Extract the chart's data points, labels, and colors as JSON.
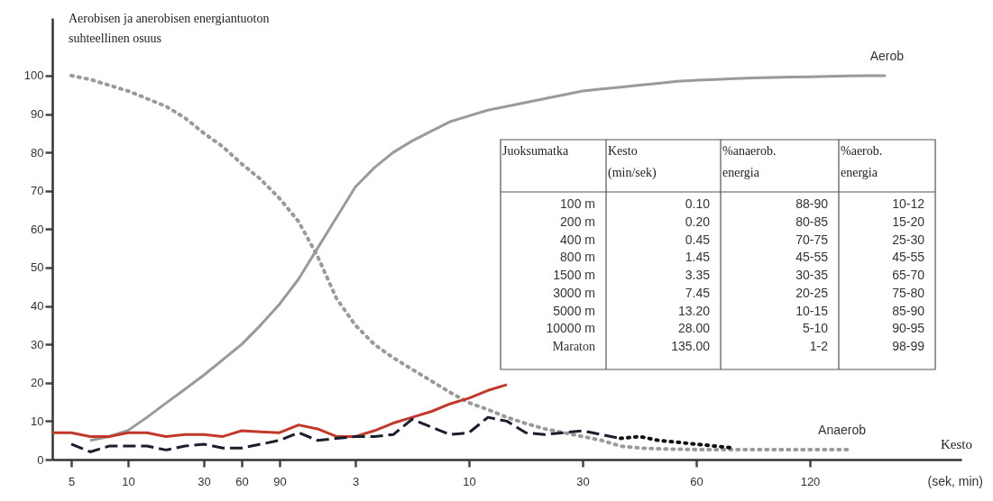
{
  "chart_data": {
    "type": "line",
    "ylabel": "Aerobisen ja anerobisen energiantuoton\nsuhteellinen osuus",
    "xlabel": "Kesto\n(sek, min)",
    "categories": [
      null,
      "5",
      null,
      null,
      "10",
      null,
      null,
      null,
      "30",
      null,
      "60",
      null,
      "90",
      null,
      null,
      null,
      "3",
      null,
      null,
      null,
      null,
      null,
      "10",
      null,
      null,
      null,
      null,
      null,
      "30",
      null,
      null,
      null,
      null,
      null,
      "60",
      null,
      null,
      null,
      null,
      null,
      "120",
      null,
      null,
      null,
      null,
      null,
      null,
      null,
      null
    ],
    "ylim": [
      0,
      115
    ],
    "yticks": [
      0,
      10,
      20,
      30,
      40,
      50,
      60,
      70,
      80,
      90,
      100
    ],
    "grid": false,
    "series": [
      {
        "name": "Aerob",
        "color": "#9a9a9a",
        "line_style": "solid",
        "values": [
          null,
          null,
          5,
          6,
          7.6,
          11,
          14.7,
          18.3,
          22,
          26,
          30,
          35,
          40.5,
          47,
          55,
          63,
          71,
          76,
          80,
          83,
          85.5,
          88,
          89.5,
          91,
          92,
          93,
          94,
          95,
          96,
          96.5,
          97,
          97.5,
          98,
          98.5,
          98.8,
          99,
          99.2,
          99.4,
          99.5,
          99.6,
          99.7,
          99.8,
          99.9,
          100,
          100,
          null,
          null,
          null,
          null
        ]
      },
      {
        "name": "Anaerob",
        "color": "#9a9a9a",
        "line_style": "dotted",
        "values": [
          null,
          100,
          99,
          97.5,
          96,
          94,
          92,
          89,
          85,
          81.5,
          77,
          73,
          68,
          62,
          53,
          42,
          35,
          30,
          26.5,
          23.5,
          20.5,
          17.5,
          14.8,
          13,
          11,
          9.4,
          8,
          7,
          6,
          5,
          3.5,
          3,
          2.8,
          2.7,
          2.6,
          2.6,
          2.6,
          2.6,
          2.6,
          2.6,
          2.6,
          2.6,
          2.6,
          null,
          null,
          null,
          null,
          null,
          null
        ]
      },
      {
        "color": "#c0392b",
        "line_style": "solid",
        "values": [
          7,
          7,
          6,
          6,
          7,
          7,
          6,
          6.5,
          6.5,
          6,
          7.5,
          7.2,
          7,
          9,
          8,
          6,
          6,
          7.5,
          9.5,
          11,
          12.5,
          14.5,
          16,
          18,
          19.5,
          null,
          null,
          null,
          null,
          null,
          null,
          null,
          null,
          null,
          null,
          null,
          null,
          null,
          null,
          null,
          null,
          null,
          null,
          null,
          null,
          null,
          null,
          null,
          null
        ]
      },
      {
        "color": "#1a1f2e",
        "line_style": "dashed",
        "values": [
          null,
          4,
          2,
          3.5,
          3.5,
          3.5,
          2.5,
          3.5,
          4,
          3,
          3,
          4,
          5,
          7,
          5,
          5.5,
          6,
          6,
          6.5,
          10.5,
          8.5,
          6.5,
          7,
          11,
          10,
          7,
          6.5,
          7,
          7.5,
          6.5,
          5.5,
          null,
          null,
          null,
          null,
          null,
          null,
          null,
          null,
          null,
          null,
          null,
          null,
          null,
          null,
          null,
          null,
          null,
          null
        ]
      },
      {
        "color": "#111111",
        "line_style": "dotted",
        "values": [
          null,
          null,
          null,
          null,
          null,
          null,
          null,
          null,
          null,
          null,
          null,
          null,
          null,
          null,
          null,
          null,
          null,
          null,
          null,
          null,
          null,
          null,
          null,
          null,
          null,
          null,
          null,
          null,
          null,
          null,
          5.5,
          6,
          5,
          4.5,
          4,
          3.5,
          3,
          null,
          null,
          null,
          null,
          null,
          null,
          null,
          null,
          null,
          null,
          null,
          null
        ]
      }
    ],
    "annotations": [
      "Juoksumatka",
      "Kesto\n(min/sek)",
      "%anaerob.\nenergia",
      "%aerob.\nenergia",
      "100 m",
      "0.10",
      "88-90",
      "10-12",
      "200 m",
      "0.20",
      "80-85",
      "15-20",
      "400 m",
      "0.45",
      "70-75",
      "25-30",
      "800 m",
      "1.45",
      "45-55",
      "45-55",
      "1500 m",
      "3.35",
      "30-35",
      "65-70",
      "3000 m",
      "7.45",
      "20-25",
      "75-80",
      "5000 m",
      "13.20",
      "10-15",
      "85-90",
      "10000 m",
      "28.00",
      "5-10",
      "90-95",
      "Maraton",
      "135.00",
      "1-2",
      "98-99"
    ]
  }
}
